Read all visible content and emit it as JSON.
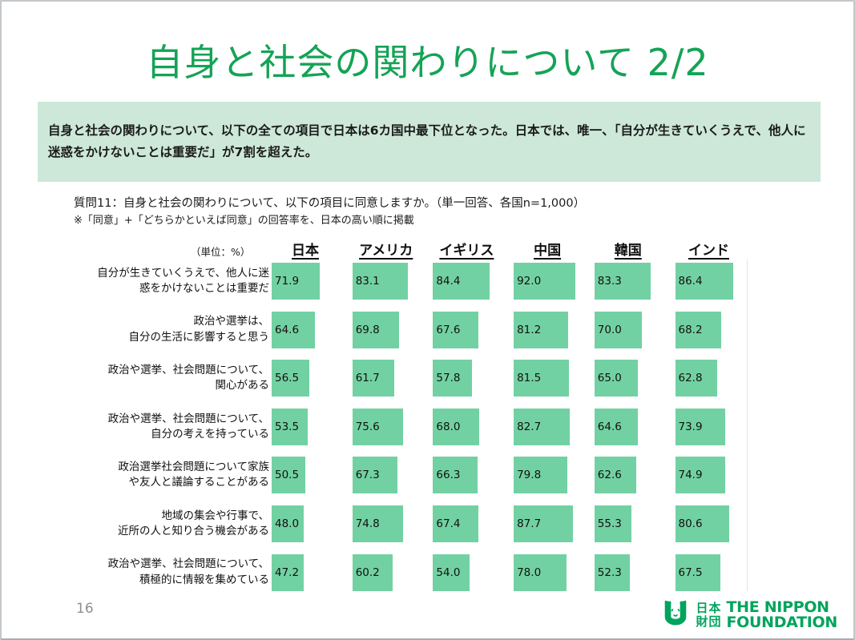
{
  "slide": {
    "title": "自身と社会の関わりについて 2/2",
    "page_number": "16"
  },
  "summary": {
    "text": "自身と社会の関わりについて、以下の全ての項目で日本は6カ国中最下位となった。日本では、唯一、「自分が生きていくうえで、他人に迷惑をかけないことは重要だ」が7割を超えた。"
  },
  "question": {
    "text": "質問11：自身と社会の関わりについて、以下の項目に同意しますか。（単一回答、各国n=1,000）",
    "note": "※「同意」+「どちらかといえば同意」の回答率を、日本の高い順に掲載"
  },
  "chart_data": {
    "type": "bar",
    "orientation": "horizontal",
    "unit_label": "（単位：%）",
    "xlim": [
      0,
      100
    ],
    "bar_color": "#72D1A2",
    "legend_position": "none",
    "grid": false,
    "columns": [
      "日本",
      "アメリカ",
      "イギリス",
      "中国",
      "韓国",
      "インド"
    ],
    "rows": [
      {
        "label": "自分が生きていくうえで、他人に迷\n惑をかけないことは重要だ",
        "values": [
          71.9,
          83.1,
          84.4,
          92.0,
          83.3,
          86.4
        ]
      },
      {
        "label": "政治や選挙は、\n自分の生活に影響すると思う",
        "values": [
          64.6,
          69.8,
          67.6,
          81.2,
          70.0,
          68.2
        ]
      },
      {
        "label": "政治や選挙、社会問題について、\n関心がある",
        "values": [
          56.5,
          61.7,
          57.8,
          81.5,
          65.0,
          62.8
        ]
      },
      {
        "label": "政治や選挙、社会問題について、\n自分の考えを持っている",
        "values": [
          53.5,
          75.6,
          68.0,
          82.7,
          64.6,
          73.9
        ]
      },
      {
        "label": "政治選挙社会問題について家族\nや友人と議論することがある",
        "values": [
          50.5,
          67.3,
          66.3,
          79.8,
          62.6,
          74.9
        ]
      },
      {
        "label": "地域の集会や行事で、\n近所の人と知り合う機会がある",
        "values": [
          48.0,
          74.8,
          67.4,
          87.7,
          55.3,
          80.6
        ]
      },
      {
        "label": "政治や選挙、社会問題について、\n積極的に情報を集めている",
        "values": [
          47.2,
          60.2,
          54.0,
          78.0,
          52.3,
          67.5
        ]
      }
    ]
  },
  "logo": {
    "jp_text": "日本\n財団",
    "en_text": "THE NIPPON\nFOUNDATION"
  },
  "colors": {
    "title_green": "#15A356",
    "summary_bg": "#CDE8D8",
    "logo_green": "#00A45C",
    "page_number_gray": "#8F8F8F"
  }
}
